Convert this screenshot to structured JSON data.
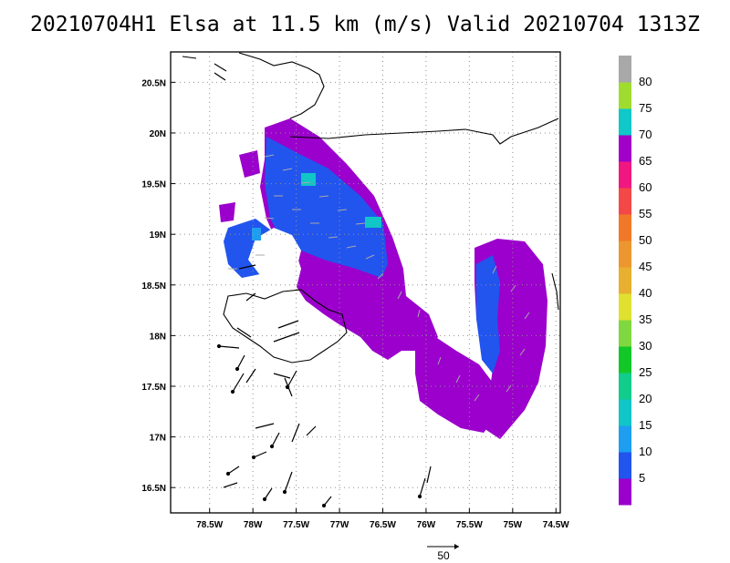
{
  "title": "20210704H1 Elsa at 11.5 km (m/s) Valid 20210704 1313Z",
  "map": {
    "lon_range": [
      -78.95,
      -74.45
    ],
    "lat_range": [
      16.25,
      20.8
    ],
    "lon_ticks": [
      {
        "value": -78.5,
        "label": "78.5W"
      },
      {
        "value": -78,
        "label": "78W"
      },
      {
        "value": -77.5,
        "label": "77.5W"
      },
      {
        "value": -77,
        "label": "77W"
      },
      {
        "value": -76.5,
        "label": "76.5W"
      },
      {
        "value": -76,
        "label": "76W"
      },
      {
        "value": -75.5,
        "label": "75.5W"
      },
      {
        "value": -75,
        "label": "75W"
      },
      {
        "value": -74.5,
        "label": "74.5W"
      }
    ],
    "lat_ticks": [
      {
        "value": 20.5,
        "label": "20.5N"
      },
      {
        "value": 20,
        "label": "20N"
      },
      {
        "value": 19.5,
        "label": "19.5N"
      },
      {
        "value": 19,
        "label": "19N"
      },
      {
        "value": 18.5,
        "label": "18.5N"
      },
      {
        "value": 18,
        "label": "18N"
      },
      {
        "value": 17.5,
        "label": "17.5N"
      },
      {
        "value": 17,
        "label": "17N"
      },
      {
        "value": 16.5,
        "label": "16.5N"
      }
    ],
    "gridlines": "dotted",
    "coastline_color": "#000000",
    "vector_color": "#a0a0a0",
    "barb_color": "#000000"
  },
  "colorbar": {
    "levels": [
      {
        "label": "5",
        "color": "#9b00cc"
      },
      {
        "label": "10",
        "color": "#2255ee"
      },
      {
        "label": "15",
        "color": "#1e9ef0"
      },
      {
        "label": "20",
        "color": "#10c6c6"
      },
      {
        "label": "25",
        "color": "#12cc8c"
      },
      {
        "label": "30",
        "color": "#12c828"
      },
      {
        "label": "35",
        "color": "#80d840"
      },
      {
        "label": "40",
        "color": "#e0e030"
      },
      {
        "label": "45",
        "color": "#e8b030"
      },
      {
        "label": "50",
        "color": "#ec9630"
      },
      {
        "label": "55",
        "color": "#f07828"
      },
      {
        "label": "60",
        "color": "#f44848"
      },
      {
        "label": "65",
        "color": "#f01880"
      },
      {
        "label": "70",
        "color": "#a000c8"
      },
      {
        "label": "75",
        "color": "#10c8c8"
      },
      {
        "label": "80",
        "color": "#a0dc30"
      },
      {
        "label": "",
        "color": "#a8a8a8"
      }
    ]
  },
  "legend": {
    "vector_label": "50"
  }
}
